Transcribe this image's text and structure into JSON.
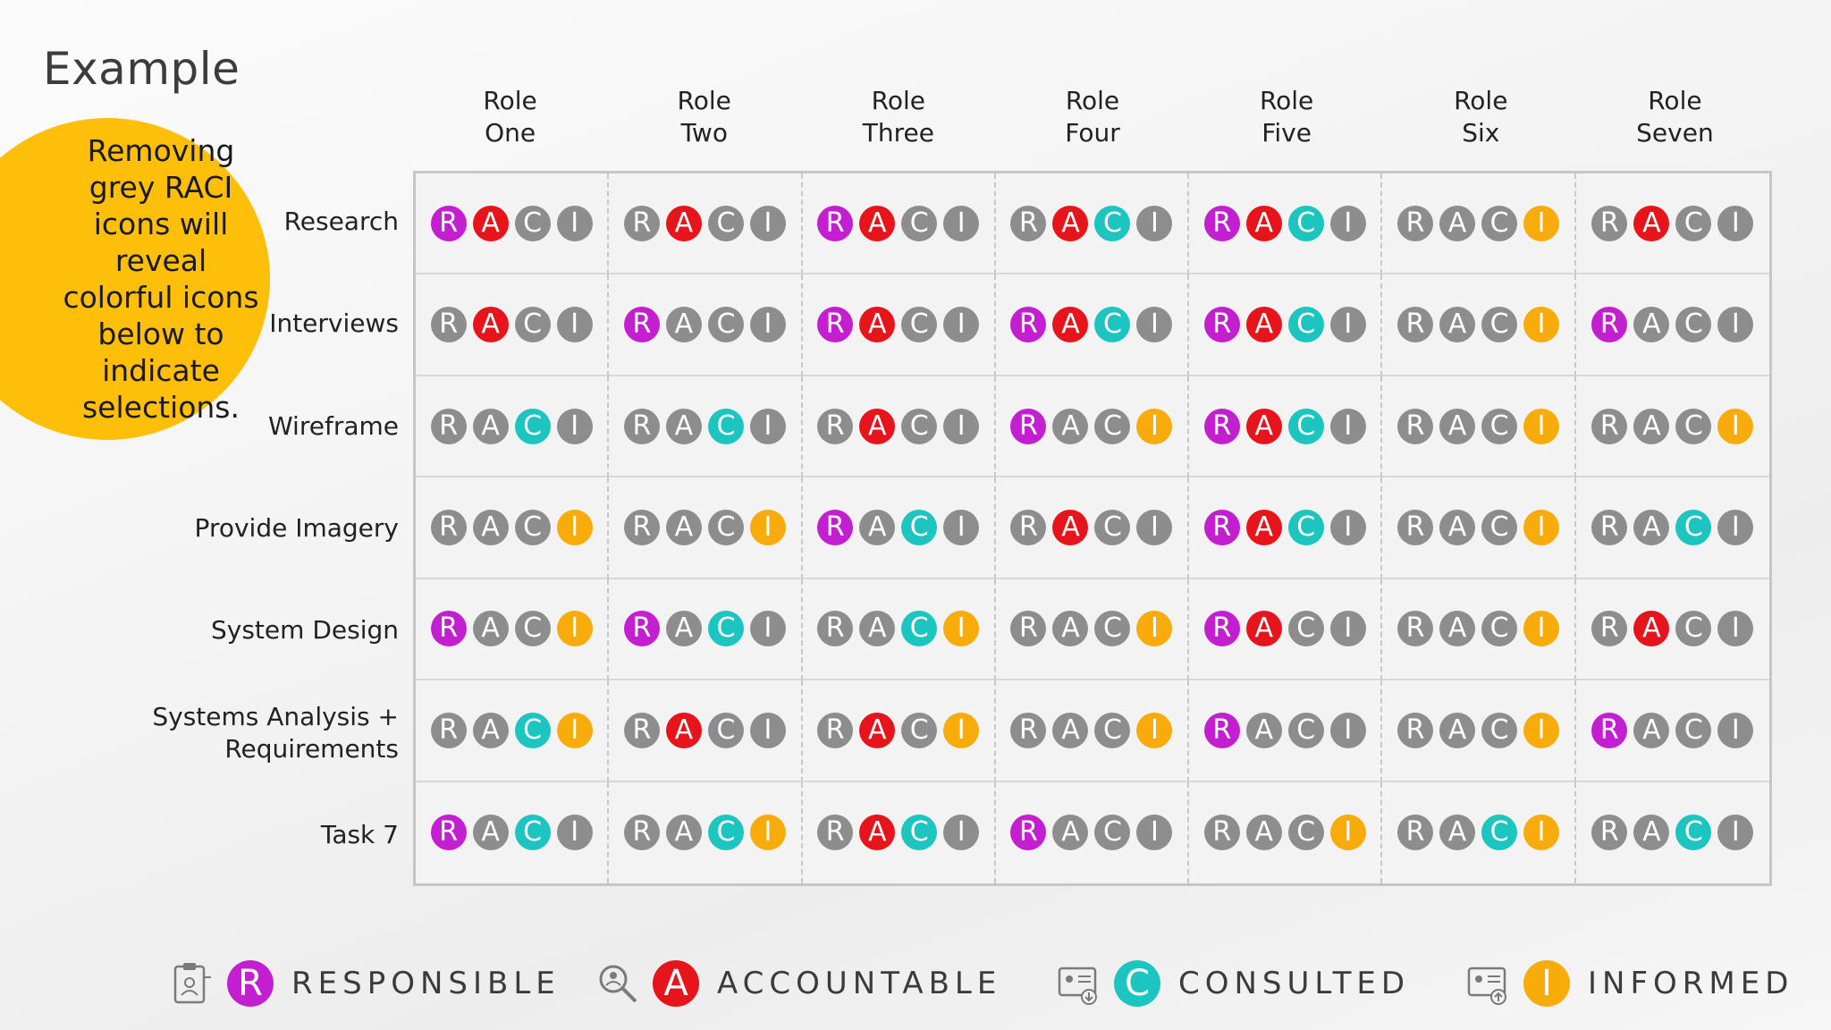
{
  "slide": {
    "title": "Example",
    "callout": "Removing grey RACI icons will reveal colorful icons below to indicate selections."
  },
  "letters": [
    "R",
    "A",
    "C",
    "I"
  ],
  "colors": {
    "R": "#c31fd1",
    "A": "#e8141b",
    "C": "#1cc5bf",
    "I": "#f8ac0c",
    "inactive": "#8d8d8d",
    "callout": "#fdbf0a"
  },
  "roles": [
    "Role\nOne",
    "Role\nTwo",
    "Role\nThree",
    "Role\nFour",
    "Role\nFive",
    "Role\nSix",
    "Role\nSeven"
  ],
  "tasks": [
    "Research",
    "Interviews",
    "Wireframe",
    "Provide Imagery",
    "System Design",
    "Systems Analysis +\nRequirements",
    "Task 7"
  ],
  "matrix": [
    [
      "RA",
      "A",
      "RA",
      "AC",
      "RAC",
      "I",
      "A"
    ],
    [
      "A",
      "R",
      "RA",
      "RAC",
      "RAC",
      "I",
      "R"
    ],
    [
      "C",
      "C",
      "A",
      "RI",
      "RAC",
      "I",
      "I"
    ],
    [
      "I",
      "I",
      "RC",
      "A",
      "RAC",
      "I",
      "C"
    ],
    [
      "RI",
      "RC",
      "CI",
      "I",
      "RA",
      "I",
      "A"
    ],
    [
      "CI",
      "A",
      "AI",
      "I",
      "R",
      "I",
      "R"
    ],
    [
      "RC",
      "CI",
      "AC",
      "R",
      "I",
      "CI",
      "C"
    ]
  ],
  "legend": [
    {
      "key": "R",
      "letter": "R",
      "label": "RESPONSIBLE",
      "icon": "clipboard-person-icon"
    },
    {
      "key": "A",
      "letter": "A",
      "label": "ACCOUNTABLE",
      "icon": "magnifier-person-icon"
    },
    {
      "key": "C",
      "letter": "C",
      "label": "CONSULTED",
      "icon": "id-card-download-icon"
    },
    {
      "key": "I",
      "letter": "I",
      "label": "INFORMED",
      "icon": "id-card-upload-icon"
    }
  ]
}
